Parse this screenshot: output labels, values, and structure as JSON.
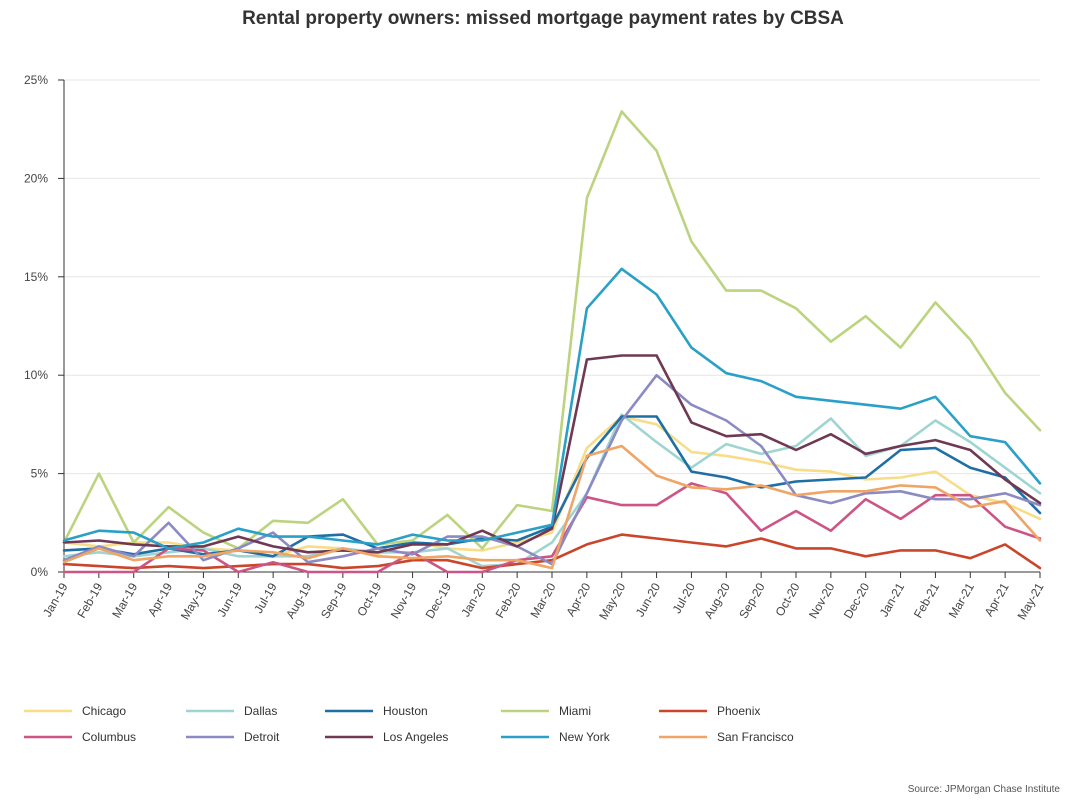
{
  "chart_data": {
    "type": "line",
    "title": "Rental property owners: missed mortgage payment rates by CBSA",
    "source": "Source: JPMorgan Chase Institute",
    "xlabel": "",
    "ylabel": "",
    "ylim": [
      0,
      25
    ],
    "y_ticks": [
      "0%",
      "5%",
      "10%",
      "15%",
      "20%",
      "25%"
    ],
    "y_tick_values": [
      0,
      5,
      10,
      15,
      20,
      25
    ],
    "grid": true,
    "legend_position": "bottom",
    "x": [
      "Jan-19",
      "Feb-19",
      "Mar-19",
      "Apr-19",
      "May-19",
      "Jun-19",
      "Jul-19",
      "Aug-19",
      "Sep-19",
      "Oct-19",
      "Nov-19",
      "Dec-19",
      "Jan-20",
      "Feb-20",
      "Mar-20",
      "Apr-20",
      "May-20",
      "Jun-20",
      "Jul-20",
      "Aug-20",
      "Sep-20",
      "Oct-20",
      "Nov-20",
      "Dec-20",
      "Jan-21",
      "Feb-21",
      "Mar-21",
      "Apr-21",
      "May-21"
    ],
    "series": [
      {
        "name": "Chicago",
        "color": "#f7dd8a",
        "values": [
          1.5,
          1.3,
          1.5,
          1.5,
          1.2,
          1.1,
          0.8,
          1.3,
          1.2,
          0.9,
          1.5,
          1.2,
          1.1,
          1.5,
          2.0,
          6.3,
          7.9,
          7.5,
          6.1,
          5.9,
          5.6,
          5.2,
          5.1,
          4.7,
          4.8,
          5.1,
          3.9,
          3.5,
          2.7
        ]
      },
      {
        "name": "Dallas",
        "color": "#9fd5d1",
        "values": [
          0.8,
          1.0,
          0.8,
          1.0,
          1.2,
          0.8,
          0.8,
          0.8,
          1.2,
          1.0,
          1.0,
          1.2,
          0.3,
          0.4,
          1.5,
          4.0,
          8.0,
          6.6,
          5.3,
          6.5,
          6.0,
          6.4,
          7.8,
          5.9,
          6.4,
          7.7,
          6.6,
          5.3,
          4.0
        ]
      },
      {
        "name": "Houston",
        "color": "#1f6fa5",
        "values": [
          1.1,
          1.2,
          0.9,
          1.2,
          0.9,
          1.1,
          0.8,
          1.8,
          1.9,
          1.2,
          1.5,
          1.4,
          1.7,
          1.6,
          2.3,
          5.8,
          7.9,
          7.9,
          5.1,
          4.8,
          4.3,
          4.6,
          4.7,
          4.8,
          6.2,
          6.3,
          5.3,
          4.8,
          3.0
        ]
      },
      {
        "name": "Miami",
        "color": "#bcd37f",
        "values": [
          1.5,
          5.0,
          1.5,
          3.3,
          2.0,
          1.2,
          2.6,
          2.5,
          3.7,
          1.4,
          1.6,
          2.9,
          1.2,
          3.4,
          3.1,
          19.0,
          23.4,
          21.4,
          16.8,
          14.3,
          14.3,
          13.4,
          11.7,
          13.0,
          11.4,
          13.7,
          11.8,
          9.1,
          7.2
        ]
      },
      {
        "name": "Phoenix",
        "color": "#c9462b",
        "values": [
          0.4,
          0.3,
          0.2,
          0.3,
          0.2,
          0.3,
          0.4,
          0.4,
          0.2,
          0.3,
          0.6,
          0.6,
          0.2,
          0.4,
          0.6,
          1.4,
          1.9,
          1.7,
          1.5,
          1.3,
          1.7,
          1.2,
          1.2,
          0.8,
          1.1,
          1.1,
          0.7,
          1.4,
          0.2
        ]
      },
      {
        "name": "Columbus",
        "color": "#cc5585",
        "values": [
          0.0,
          0.0,
          0.0,
          1.2,
          1.1,
          0.0,
          0.5,
          0.0,
          0.0,
          0.0,
          1.0,
          0.0,
          0.0,
          0.6,
          0.8,
          3.8,
          3.4,
          3.4,
          4.5,
          4.0,
          2.1,
          3.1,
          2.1,
          3.7,
          2.7,
          3.9,
          3.9,
          2.3,
          1.7
        ]
      },
      {
        "name": "Detroit",
        "color": "#8b8ac3",
        "values": [
          0.6,
          1.3,
          0.8,
          2.5,
          0.6,
          1.2,
          2.0,
          0.5,
          0.8,
          1.2,
          0.9,
          1.8,
          1.8,
          1.3,
          0.4,
          4.0,
          7.7,
          10.0,
          8.5,
          7.7,
          6.4,
          3.9,
          3.5,
          4.0,
          4.1,
          3.7,
          3.7,
          4.0,
          3.4
        ]
      },
      {
        "name": "Los Angeles",
        "color": "#6f3853",
        "values": [
          1.5,
          1.6,
          1.4,
          1.3,
          1.3,
          1.8,
          1.3,
          1.0,
          1.1,
          1.0,
          1.4,
          1.4,
          2.1,
          1.3,
          2.2,
          10.8,
          11.0,
          11.0,
          7.6,
          6.9,
          7.0,
          6.2,
          7.0,
          6.0,
          6.4,
          6.7,
          6.2,
          4.7,
          3.5
        ]
      },
      {
        "name": "New York",
        "color": "#2aa0c6",
        "values": [
          1.6,
          2.1,
          2.0,
          1.2,
          1.5,
          2.2,
          1.8,
          1.8,
          1.6,
          1.4,
          1.9,
          1.6,
          1.6,
          2.0,
          2.4,
          13.4,
          15.4,
          14.1,
          11.4,
          10.1,
          9.7,
          8.9,
          8.7,
          8.5,
          8.3,
          8.9,
          6.9,
          6.6,
          4.5
        ]
      },
      {
        "name": "San Francisco",
        "color": "#eea566",
        "values": [
          0.5,
          1.2,
          0.6,
          0.8,
          0.8,
          1.1,
          1.0,
          0.7,
          1.2,
          0.8,
          0.7,
          0.8,
          0.6,
          0.6,
          0.2,
          5.9,
          6.4,
          4.9,
          4.3,
          4.2,
          4.4,
          3.9,
          4.1,
          4.1,
          4.4,
          4.3,
          3.3,
          3.6,
          1.6
        ]
      }
    ]
  }
}
